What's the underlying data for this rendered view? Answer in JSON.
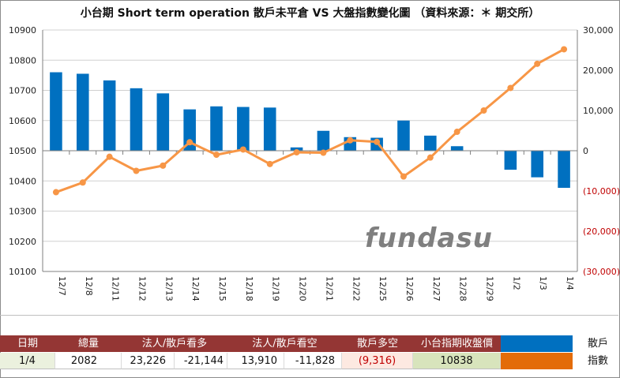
{
  "chart_data": {
    "type": "bar+line",
    "title": "小台期 Short term operation  散戶未平倉 VS 大盤指數變化圖 （資料來源：＊ 期交所）",
    "categories": [
      "12/7",
      "12/8",
      "12/11",
      "12/12",
      "12/13",
      "12/14",
      "12/15",
      "12/18",
      "12/19",
      "12/20",
      "12/21",
      "12/22",
      "12/25",
      "12/26",
      "12/27",
      "12/28",
      "12/29",
      "1/2",
      "1/3",
      "1/4"
    ],
    "left_axis": {
      "min": 10100,
      "max": 10900,
      "step": 100,
      "ticks": [
        "10100",
        "10200",
        "10300",
        "10400",
        "10500",
        "10600",
        "10700",
        "10800",
        "10900"
      ]
    },
    "right_axis": {
      "min": -30000,
      "max": 30000,
      "step": 10000,
      "ticks": [
        "(30,000)",
        "(20,000)",
        "(10,000)",
        "0",
        "10,000",
        "20,000",
        "30,000"
      ]
    },
    "series": [
      {
        "name": "散戶",
        "type": "bar",
        "axis": "left",
        "color": "#0070c0",
        "values": [
          10760,
          10755,
          10733,
          10707,
          10690,
          10637,
          10647,
          10645,
          10643,
          10511,
          10566,
          10545,
          10543,
          10600,
          10550,
          10515,
          null,
          10437,
          10412,
          10377
        ]
      },
      {
        "name": "指數",
        "type": "line",
        "axis": "right",
        "color": "#f79646",
        "values": [
          -10300,
          -7900,
          -1500,
          -5000,
          -3700,
          2100,
          -1000,
          300,
          -3300,
          -400,
          -500,
          2600,
          2200,
          -6400,
          -1700,
          4700,
          10000,
          15600,
          21600,
          25200
        ]
      }
    ],
    "watermark": "fundasu",
    "grid": "horizontal"
  },
  "table": {
    "headers": [
      "日期",
      "總量",
      "法人/散戶看多",
      "",
      "法人/散戶看空",
      "",
      "散戶多空",
      "小台指期收盤價"
    ],
    "row": [
      "1/4",
      "2082",
      "23,226",
      "-21,144",
      "13,910",
      "-11,828",
      "(9,316)",
      "10838"
    ],
    "legend": [
      {
        "label": "散戶",
        "color": "#0070c0"
      },
      {
        "label": "指數",
        "color": "#e36c09"
      }
    ]
  }
}
